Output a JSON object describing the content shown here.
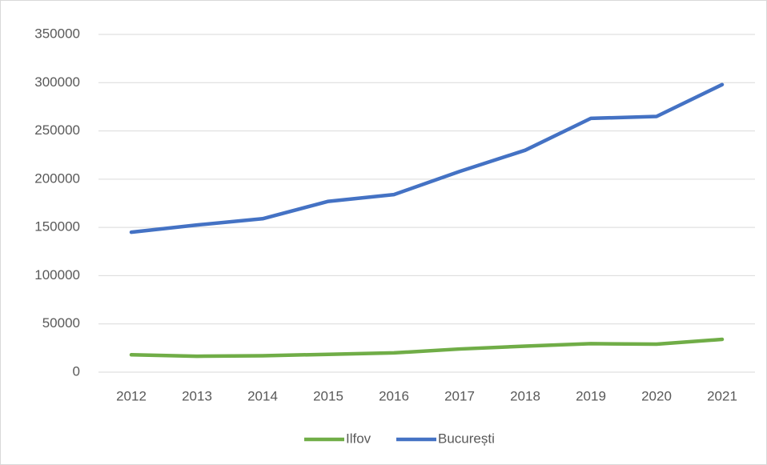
{
  "chart_data": {
    "type": "line",
    "categories": [
      "2012",
      "2013",
      "2014",
      "2015",
      "2016",
      "2017",
      "2018",
      "2019",
      "2020",
      "2021"
    ],
    "series": [
      {
        "name": "Ilfov",
        "color": "#70ad47",
        "values": [
          18000,
          16500,
          17000,
          18500,
          20000,
          24000,
          27000,
          29500,
          29000,
          34000
        ]
      },
      {
        "name": "București",
        "color": "#4472c4",
        "values": [
          145000,
          152500,
          159000,
          177000,
          184000,
          208000,
          230000,
          263000,
          265000,
          298000
        ]
      }
    ],
    "ylim": [
      0,
      350000
    ],
    "yticks": [
      0,
      50000,
      100000,
      150000,
      200000,
      250000,
      300000,
      350000
    ],
    "grid": true,
    "legend": "bottom"
  }
}
